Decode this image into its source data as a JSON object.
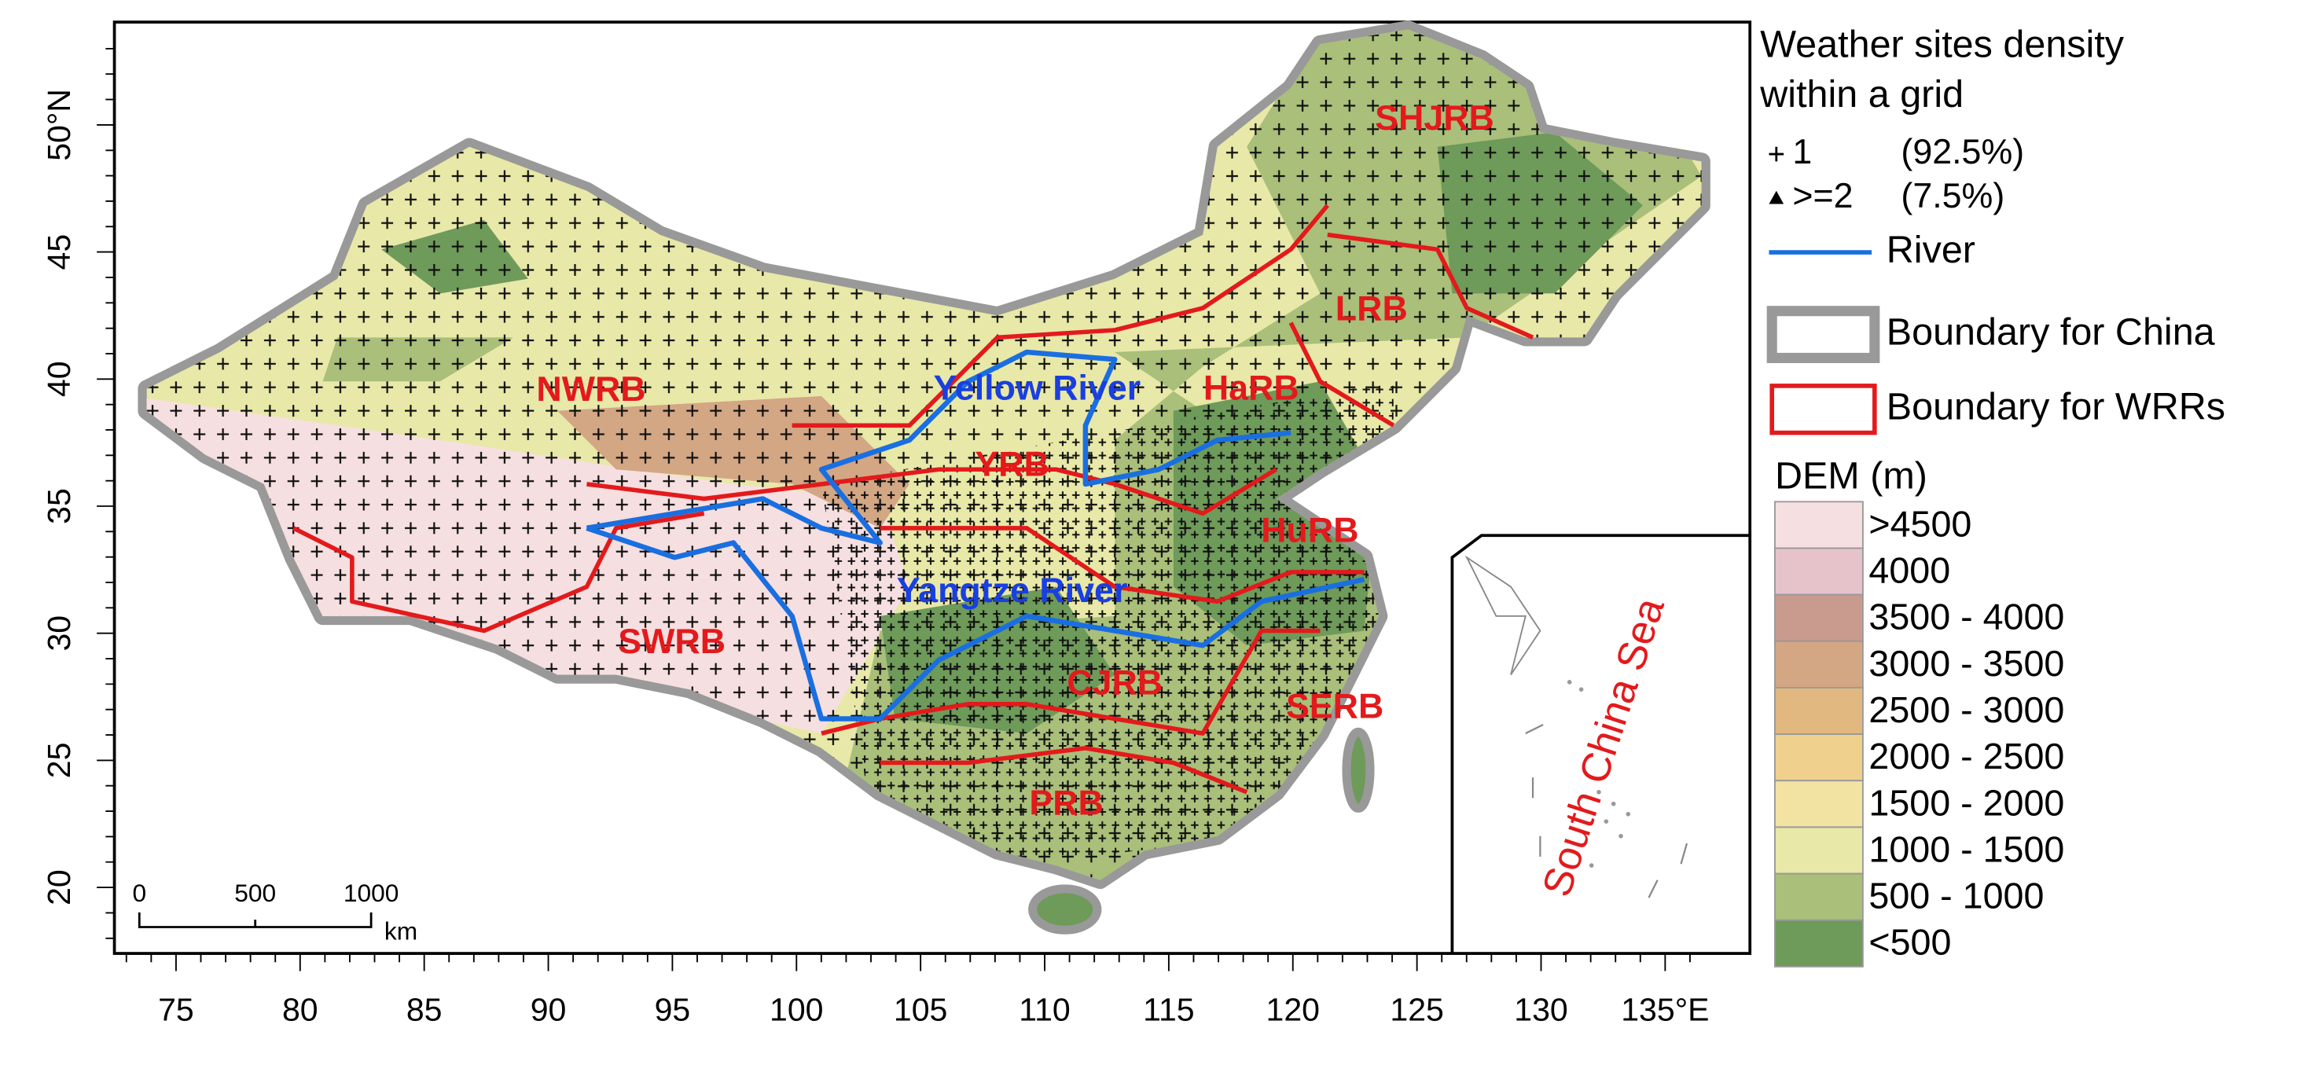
{
  "axes": {
    "latitude_labels": [
      "20",
      "25",
      "30",
      "35",
      "40",
      "45",
      "50°N"
    ],
    "longitude_labels": [
      "75",
      "80",
      "85",
      "90",
      "95",
      "100",
      "105",
      "110",
      "115",
      "120",
      "125",
      "130",
      "135°E"
    ]
  },
  "regions": [
    "SHJRB",
    "LRB",
    "NWRB",
    "HaRB",
    "YRB",
    "HuRB",
    "SWRB",
    "CJRB",
    "SERB",
    "PRB"
  ],
  "rivers": [
    "Yellow River",
    "Yangtze River"
  ],
  "scale_bar": {
    "labels": [
      "0",
      "500",
      "1000"
    ],
    "unit": "km"
  },
  "inset": {
    "label": "South China Sea"
  },
  "legend": {
    "title": [
      "Weather sites density",
      "within a grid"
    ],
    "sites": [
      {
        "label": "1",
        "share": "(92.5%)"
      },
      {
        "label": ">=2",
        "share": "(7.5%)"
      }
    ],
    "lines": [
      "River",
      "Boundary for China",
      "Boundary for WRRs"
    ],
    "dem_title": "DEM (m)",
    "dem_classes": [
      {
        "label": ">4500",
        "color": "#f6dfe0"
      },
      {
        "label": "4000",
        "color": "#e6c2cb"
      },
      {
        "label": "3500 - 4000",
        "color": "#c99a8e"
      },
      {
        "label": "3000 - 3500",
        "color": "#d3a684"
      },
      {
        "label": "2500 - 3000",
        "color": "#e1b87f"
      },
      {
        "label": "2000 - 2500",
        "color": "#efd08c"
      },
      {
        "label": "1500 - 2000",
        "color": "#f3e3a2"
      },
      {
        "label": "1000 - 1500",
        "color": "#e8e8a8"
      },
      {
        "label": "500 - 1000",
        "color": "#a9bf7a"
      },
      {
        "label": "<500",
        "color": "#6e9a5a"
      }
    ]
  }
}
